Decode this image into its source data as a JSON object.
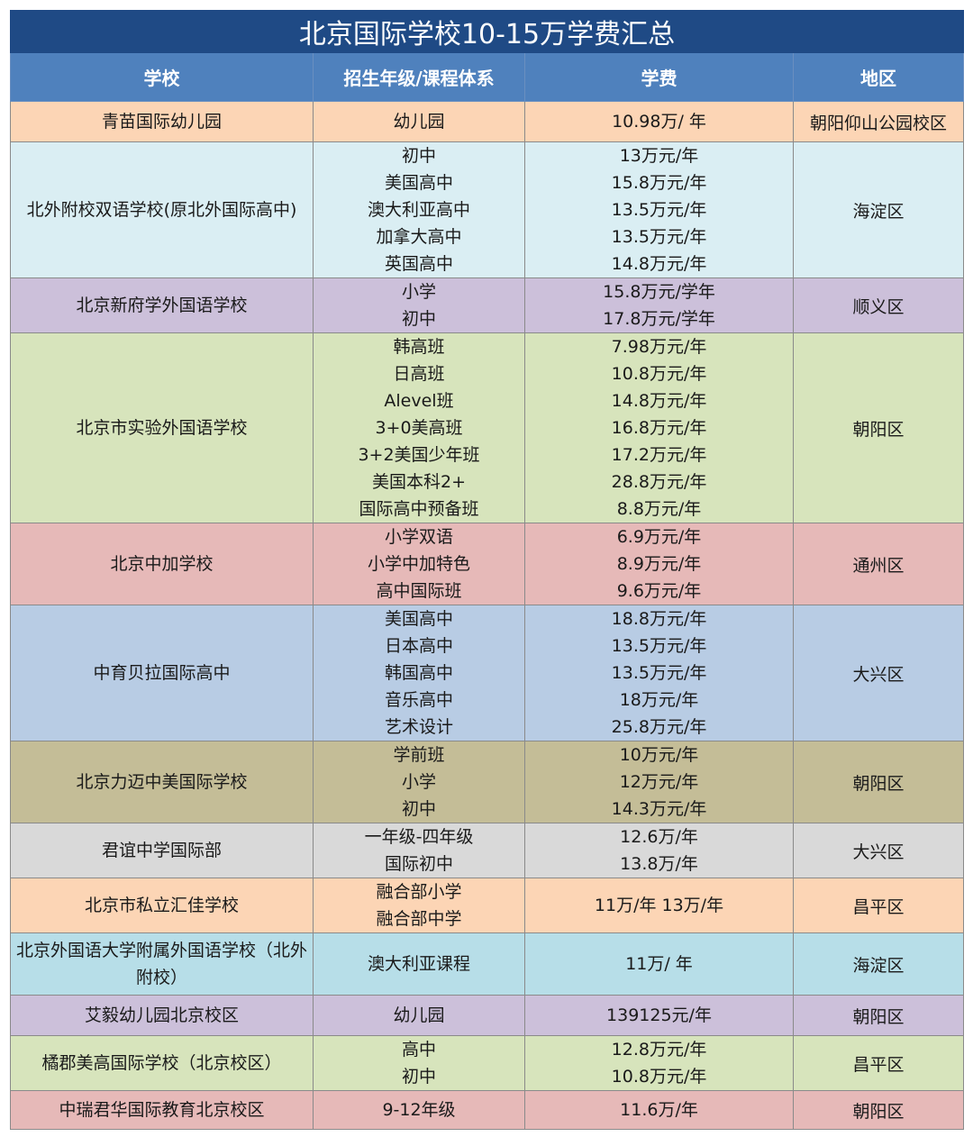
{
  "title": "北京国际学校10-15万学费汇总",
  "headers": [
    "学校",
    "招生年级/课程体系",
    "学费",
    "地区"
  ],
  "rows": [
    {
      "school": "青苗国际幼儿园",
      "grades": [
        "幼儿园"
      ],
      "fees": [
        "10.98万/ 年"
      ],
      "region": "朝阳仰山公园校区",
      "color": "#fcd5b5",
      "h": 45
    },
    {
      "school": "北外附校双语学校(原北外国际高中)",
      "grades": [
        "初中",
        "美国高中",
        "澳大利亚高中",
        "加拿大高中",
        "英国高中"
      ],
      "fees": [
        "13万元/年",
        "15.8万元/年",
        "13.5万元/年",
        "13.5万元/年",
        "14.8万元/年"
      ],
      "region": "海淀区",
      "color": "#daeef3",
      "h": 151
    },
    {
      "school": "北京新府学外国语学校",
      "grades": [
        "小学",
        "初中"
      ],
      "fees": [
        "15.8万元/学年",
        "17.8万元/学年"
      ],
      "region": "顺义区",
      "color": "#ccc0da",
      "h": 61
    },
    {
      "school": "北京市实验外国语学校",
      "grades": [
        "韩高班",
        "日高班",
        "Alevel班",
        "3+0美高班",
        "3+2美国少年班",
        "美国本科2+",
        "国际高中预备班"
      ],
      "fees": [
        "7.98万元/年",
        "10.8万元/年",
        "14.8万元/年",
        "16.8万元/年",
        "17.2万元/年",
        "28.8万元/年",
        "8.8万元/年"
      ],
      "region": "朝阳区",
      "color": "#d7e4bc",
      "h": 211
    },
    {
      "school": "北京中加学校",
      "grades": [
        "小学双语",
        "小学中加特色",
        "高中国际班"
      ],
      "fees": [
        "6.9万元/年",
        "8.9万元/年",
        "9.6万元/年"
      ],
      "region": "通州区",
      "color": "#e6b9b8",
      "h": 91
    },
    {
      "school": "中育贝拉国际高中",
      "grades": [
        "美国高中",
        "日本高中",
        "韩国高中",
        "音乐高中",
        "艺术设计"
      ],
      "fees": [
        "18.8万元/年",
        "13.5万元/年",
        "13.5万元/年",
        "18万元/年",
        "25.8万元/年"
      ],
      "region": "大兴区",
      "color": "#b8cce4",
      "h": 151
    },
    {
      "school": "北京力迈中美国际学校",
      "grades": [
        "学前班",
        "小学",
        "初中"
      ],
      "fees": [
        "10万元/年",
        "12万元/年",
        "14.3万元/年"
      ],
      "region": "朝阳区",
      "color": "#c4bd97",
      "h": 90
    },
    {
      "school": "君谊中学国际部",
      "grades": [
        "一年级-四年级",
        "国际初中"
      ],
      "fees": [
        "12.6万/年",
        "13.8万/年"
      ],
      "region": "大兴区",
      "color": "#d9d9d9",
      "h": 60
    },
    {
      "school": "北京市私立汇佳学校",
      "grades": [
        "融合部小学",
        "融合部中学"
      ],
      "fees": [
        "11万/年  13万/年"
      ],
      "region": "昌平区",
      "color": "#fcd5b5",
      "h": 61
    },
    {
      "school": "北京外国语大学附属外国语学校（北外附校）",
      "grades": [
        "澳大利亚课程"
      ],
      "fees": [
        "11万/ 年"
      ],
      "region": "海淀区",
      "color": "#b7dee8",
      "h": 69
    },
    {
      "school": "艾毅幼儿园北京校区",
      "grades": [
        "幼儿园"
      ],
      "fees": [
        "139125元/年"
      ],
      "region": "朝阳区",
      "color": "#ccc0da",
      "h": 45
    },
    {
      "school": "橘郡美高国际学校（北京校区）",
      "grades": [
        "高中",
        "初中"
      ],
      "fees": [
        "12.8万元/年",
        "10.8万元/年"
      ],
      "region": "昌平区",
      "color": "#d7e4bc",
      "h": 61
    },
    {
      "school": "中瑞君华国际教育北京校区",
      "grades": [
        "9-12年级"
      ],
      "fees": [
        "11.6万/年"
      ],
      "region": "朝阳区",
      "color": "#e6b9b8",
      "h": 43
    }
  ]
}
